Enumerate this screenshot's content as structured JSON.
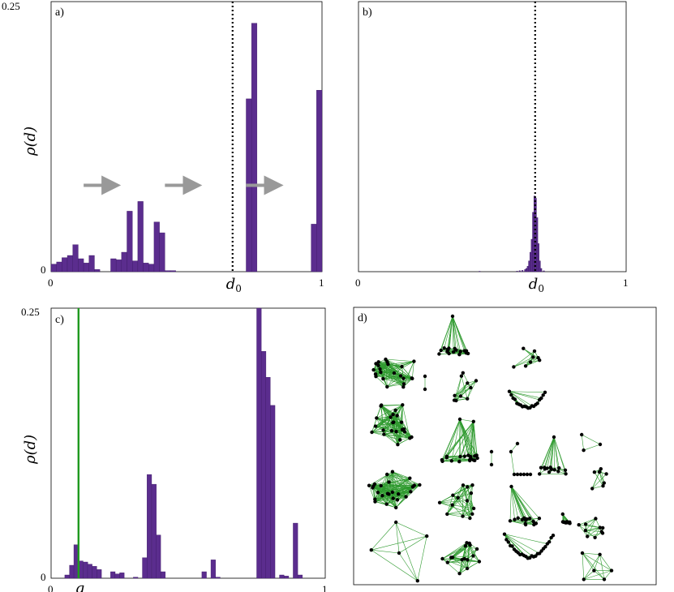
{
  "colors": {
    "bar": "#5b2d8e",
    "bar_edge": "#3d1a66",
    "threshold_line": "#000000",
    "green_line": "#1f9a1f",
    "arrow": "#999999",
    "edge": "#2e9a2e",
    "node": "#000000"
  },
  "chart_data": [
    {
      "panel": "a)",
      "type": "bar",
      "ylabel": "ρ(d)",
      "xlim": [
        0,
        1
      ],
      "ylim": [
        0,
        0.25
      ],
      "ytick_labels": [
        "0",
        "0.25"
      ],
      "xtick_labels": [
        "0",
        "d0",
        "1"
      ],
      "xtick_values": [
        0,
        0.67,
        1
      ],
      "threshold": {
        "label": "d0",
        "x": 0.67,
        "style": "dotted"
      },
      "arrows": [
        {
          "x": 0.18,
          "y": 0.08
        },
        {
          "x": 0.48,
          "y": 0.08
        },
        {
          "x": 0.78,
          "y": 0.08
        }
      ],
      "bin_width": 0.02,
      "bins_left": [
        0.0,
        0.02,
        0.04,
        0.06,
        0.08,
        0.1,
        0.12,
        0.14,
        0.16,
        0.22,
        0.24,
        0.26,
        0.28,
        0.3,
        0.32,
        0.34,
        0.36,
        0.38,
        0.4,
        0.42,
        0.44,
        0.72,
        0.74,
        0.96,
        0.98
      ],
      "values": [
        0.007,
        0.009,
        0.013,
        0.015,
        0.025,
        0.012,
        0.008,
        0.015,
        0.002,
        0.012,
        0.011,
        0.018,
        0.056,
        0.01,
        0.065,
        0.008,
        0.007,
        0.046,
        0.036,
        0.001,
        0.001,
        0.16,
        0.23,
        0.044,
        0.168
      ]
    },
    {
      "panel": "b)",
      "type": "bar",
      "xlim": [
        0,
        1
      ],
      "ylim": [
        0,
        0.25
      ],
      "xtick_labels": [
        "0",
        "d0",
        "1"
      ],
      "xtick_values": [
        0,
        0.66,
        1
      ],
      "threshold": {
        "label": "d0",
        "x": 0.66,
        "style": "dotted"
      },
      "bin_width": 0.005,
      "bins_left": [
        0.45,
        0.59,
        0.6,
        0.61,
        0.62,
        0.625,
        0.63,
        0.635,
        0.64,
        0.645,
        0.65,
        0.655,
        0.66,
        0.665,
        0.67,
        0.675,
        0.68,
        0.69
      ],
      "values": [
        0.0004,
        0.0005,
        0.0009,
        0.0012,
        0.002,
        0.003,
        0.005,
        0.01,
        0.018,
        0.03,
        0.055,
        0.07,
        0.068,
        0.05,
        0.026,
        0.01,
        0.003,
        0.0008
      ]
    },
    {
      "panel": "c)",
      "type": "bar",
      "ylabel": "ρ(d)",
      "xlim": [
        0,
        1
      ],
      "ylim": [
        0,
        0.25
      ],
      "ytick_labels": [
        "0",
        "0.25"
      ],
      "xtick_labels": [
        "0",
        "g",
        "1"
      ],
      "xtick_values": [
        0,
        0.1,
        1
      ],
      "threshold": {
        "label": "g",
        "x": 0.1,
        "style": "solid-green"
      },
      "bin_width": 0.0167,
      "bins_left": [
        0.05,
        0.067,
        0.083,
        0.1,
        0.117,
        0.133,
        0.15,
        0.167,
        0.217,
        0.233,
        0.25,
        0.3,
        0.333,
        0.35,
        0.367,
        0.383,
        0.4,
        0.55,
        0.583,
        0.6,
        0.75,
        0.767,
        0.783,
        0.8,
        0.833,
        0.85,
        0.883,
        0.9
      ],
      "values": [
        0.003,
        0.012,
        0.031,
        0.016,
        0.015,
        0.013,
        0.011,
        0.008,
        0.006,
        0.004,
        0.005,
        0.001,
        0.019,
        0.096,
        0.087,
        0.04,
        0.006,
        0.006,
        0.017,
        0.001,
        0.26,
        0.21,
        0.186,
        0.16,
        0.003,
        0.002,
        0.051,
        0.003
      ]
    }
  ],
  "panel_labels": {
    "a": "a)",
    "b": "b)",
    "c": "c)",
    "d": "d)"
  },
  "network_panel": {
    "label": "d)",
    "graphs": [
      {
        "type": "dense-blob",
        "count": 22
      },
      {
        "type": "fan-top",
        "count": 18
      },
      {
        "type": "dense-small",
        "count": 8
      },
      {
        "type": "pair",
        "count": 2
      },
      {
        "type": "dense-small",
        "count": 10
      },
      {
        "type": "arc",
        "count": 20
      },
      {
        "type": "dense-blob",
        "count": 24
      },
      {
        "type": "fan-multi",
        "count": 20
      },
      {
        "type": "pair",
        "count": 2
      },
      {
        "type": "line",
        "count": 8
      },
      {
        "type": "fan-top",
        "count": 14
      },
      {
        "type": "triangle",
        "count": 3
      },
      {
        "type": "dense-blob",
        "count": 26
      },
      {
        "type": "dense-small",
        "count": 14
      },
      {
        "type": "fan-left",
        "count": 16
      },
      {
        "type": "dense-small",
        "count": 8
      },
      {
        "type": "square-cross",
        "count": 5
      },
      {
        "type": "dense-small",
        "count": 16
      },
      {
        "type": "arc",
        "count": 26
      },
      {
        "type": "dense-small",
        "count": 10
      },
      {
        "type": "fan-left",
        "count": 12
      },
      {
        "type": "quad",
        "count": 6
      }
    ]
  }
}
